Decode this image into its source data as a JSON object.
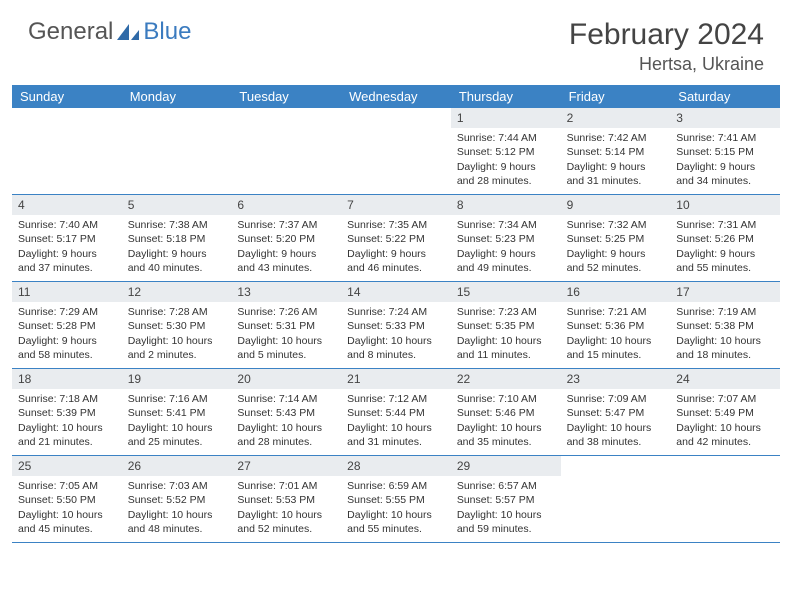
{
  "logo": {
    "general": "General",
    "blue": "Blue"
  },
  "title": "February 2024",
  "location": "Hertsa, Ukraine",
  "colors": {
    "header_bg": "#3b82c4",
    "header_text": "#ffffff",
    "daynum_bg": "#e9ecef",
    "border": "#3b82c4",
    "text": "#333333",
    "logo_blue": "#3b7bbf"
  },
  "weekdays": [
    "Sunday",
    "Monday",
    "Tuesday",
    "Wednesday",
    "Thursday",
    "Friday",
    "Saturday"
  ],
  "weeks": [
    [
      {
        "empty": true
      },
      {
        "empty": true
      },
      {
        "empty": true
      },
      {
        "empty": true
      },
      {
        "n": "1",
        "sr": "Sunrise: 7:44 AM",
        "ss": "Sunset: 5:12 PM",
        "d1": "Daylight: 9 hours",
        "d2": "and 28 minutes."
      },
      {
        "n": "2",
        "sr": "Sunrise: 7:42 AM",
        "ss": "Sunset: 5:14 PM",
        "d1": "Daylight: 9 hours",
        "d2": "and 31 minutes."
      },
      {
        "n": "3",
        "sr": "Sunrise: 7:41 AM",
        "ss": "Sunset: 5:15 PM",
        "d1": "Daylight: 9 hours",
        "d2": "and 34 minutes."
      }
    ],
    [
      {
        "n": "4",
        "sr": "Sunrise: 7:40 AM",
        "ss": "Sunset: 5:17 PM",
        "d1": "Daylight: 9 hours",
        "d2": "and 37 minutes."
      },
      {
        "n": "5",
        "sr": "Sunrise: 7:38 AM",
        "ss": "Sunset: 5:18 PM",
        "d1": "Daylight: 9 hours",
        "d2": "and 40 minutes."
      },
      {
        "n": "6",
        "sr": "Sunrise: 7:37 AM",
        "ss": "Sunset: 5:20 PM",
        "d1": "Daylight: 9 hours",
        "d2": "and 43 minutes."
      },
      {
        "n": "7",
        "sr": "Sunrise: 7:35 AM",
        "ss": "Sunset: 5:22 PM",
        "d1": "Daylight: 9 hours",
        "d2": "and 46 minutes."
      },
      {
        "n": "8",
        "sr": "Sunrise: 7:34 AM",
        "ss": "Sunset: 5:23 PM",
        "d1": "Daylight: 9 hours",
        "d2": "and 49 minutes."
      },
      {
        "n": "9",
        "sr": "Sunrise: 7:32 AM",
        "ss": "Sunset: 5:25 PM",
        "d1": "Daylight: 9 hours",
        "d2": "and 52 minutes."
      },
      {
        "n": "10",
        "sr": "Sunrise: 7:31 AM",
        "ss": "Sunset: 5:26 PM",
        "d1": "Daylight: 9 hours",
        "d2": "and 55 minutes."
      }
    ],
    [
      {
        "n": "11",
        "sr": "Sunrise: 7:29 AM",
        "ss": "Sunset: 5:28 PM",
        "d1": "Daylight: 9 hours",
        "d2": "and 58 minutes."
      },
      {
        "n": "12",
        "sr": "Sunrise: 7:28 AM",
        "ss": "Sunset: 5:30 PM",
        "d1": "Daylight: 10 hours",
        "d2": "and 2 minutes."
      },
      {
        "n": "13",
        "sr": "Sunrise: 7:26 AM",
        "ss": "Sunset: 5:31 PM",
        "d1": "Daylight: 10 hours",
        "d2": "and 5 minutes."
      },
      {
        "n": "14",
        "sr": "Sunrise: 7:24 AM",
        "ss": "Sunset: 5:33 PM",
        "d1": "Daylight: 10 hours",
        "d2": "and 8 minutes."
      },
      {
        "n": "15",
        "sr": "Sunrise: 7:23 AM",
        "ss": "Sunset: 5:35 PM",
        "d1": "Daylight: 10 hours",
        "d2": "and 11 minutes."
      },
      {
        "n": "16",
        "sr": "Sunrise: 7:21 AM",
        "ss": "Sunset: 5:36 PM",
        "d1": "Daylight: 10 hours",
        "d2": "and 15 minutes."
      },
      {
        "n": "17",
        "sr": "Sunrise: 7:19 AM",
        "ss": "Sunset: 5:38 PM",
        "d1": "Daylight: 10 hours",
        "d2": "and 18 minutes."
      }
    ],
    [
      {
        "n": "18",
        "sr": "Sunrise: 7:18 AM",
        "ss": "Sunset: 5:39 PM",
        "d1": "Daylight: 10 hours",
        "d2": "and 21 minutes."
      },
      {
        "n": "19",
        "sr": "Sunrise: 7:16 AM",
        "ss": "Sunset: 5:41 PM",
        "d1": "Daylight: 10 hours",
        "d2": "and 25 minutes."
      },
      {
        "n": "20",
        "sr": "Sunrise: 7:14 AM",
        "ss": "Sunset: 5:43 PM",
        "d1": "Daylight: 10 hours",
        "d2": "and 28 minutes."
      },
      {
        "n": "21",
        "sr": "Sunrise: 7:12 AM",
        "ss": "Sunset: 5:44 PM",
        "d1": "Daylight: 10 hours",
        "d2": "and 31 minutes."
      },
      {
        "n": "22",
        "sr": "Sunrise: 7:10 AM",
        "ss": "Sunset: 5:46 PM",
        "d1": "Daylight: 10 hours",
        "d2": "and 35 minutes."
      },
      {
        "n": "23",
        "sr": "Sunrise: 7:09 AM",
        "ss": "Sunset: 5:47 PM",
        "d1": "Daylight: 10 hours",
        "d2": "and 38 minutes."
      },
      {
        "n": "24",
        "sr": "Sunrise: 7:07 AM",
        "ss": "Sunset: 5:49 PM",
        "d1": "Daylight: 10 hours",
        "d2": "and 42 minutes."
      }
    ],
    [
      {
        "n": "25",
        "sr": "Sunrise: 7:05 AM",
        "ss": "Sunset: 5:50 PM",
        "d1": "Daylight: 10 hours",
        "d2": "and 45 minutes."
      },
      {
        "n": "26",
        "sr": "Sunrise: 7:03 AM",
        "ss": "Sunset: 5:52 PM",
        "d1": "Daylight: 10 hours",
        "d2": "and 48 minutes."
      },
      {
        "n": "27",
        "sr": "Sunrise: 7:01 AM",
        "ss": "Sunset: 5:53 PM",
        "d1": "Daylight: 10 hours",
        "d2": "and 52 minutes."
      },
      {
        "n": "28",
        "sr": "Sunrise: 6:59 AM",
        "ss": "Sunset: 5:55 PM",
        "d1": "Daylight: 10 hours",
        "d2": "and 55 minutes."
      },
      {
        "n": "29",
        "sr": "Sunrise: 6:57 AM",
        "ss": "Sunset: 5:57 PM",
        "d1": "Daylight: 10 hours",
        "d2": "and 59 minutes."
      },
      {
        "empty": true
      },
      {
        "empty": true
      }
    ]
  ]
}
